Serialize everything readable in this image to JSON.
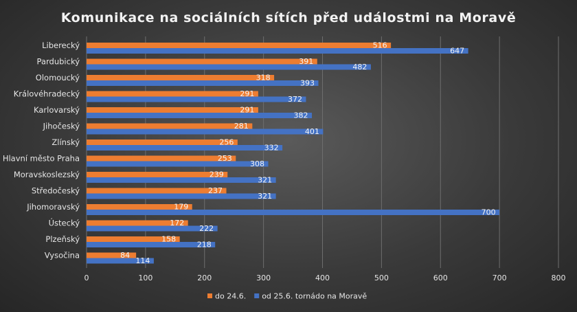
{
  "chart_data": {
    "type": "bar",
    "orientation": "horizontal",
    "title": "Komunikace na sociálních sítích před událostmi na Moravě",
    "categories": [
      "Liberecký",
      "Pardubický",
      "Olomoucký",
      "Královéhradecký",
      "Karlovarský",
      "Jihočeský",
      "Zlínský",
      "Hlavní město Praha",
      "Moravskoslezský",
      "Středočeský",
      "Jihomoravský",
      "Ústecký",
      "Plzeňský",
      "Vysočina"
    ],
    "series": [
      {
        "name": "do 24.6.",
        "color": "#ed7d31",
        "values": [
          516,
          391,
          318,
          291,
          291,
          281,
          256,
          253,
          239,
          237,
          179,
          172,
          158,
          84
        ]
      },
      {
        "name": "od 25.6. tornádo na Moravě",
        "color": "#4472c4",
        "values": [
          647,
          482,
          393,
          372,
          382,
          401,
          332,
          308,
          321,
          321,
          700,
          222,
          218,
          114
        ]
      }
    ],
    "xlim": [
      0,
      800
    ],
    "xticks": [
      0,
      100,
      200,
      300,
      400,
      500,
      600,
      700,
      800
    ],
    "grid": true,
    "data_labels": true,
    "legend_position": "bottom"
  }
}
